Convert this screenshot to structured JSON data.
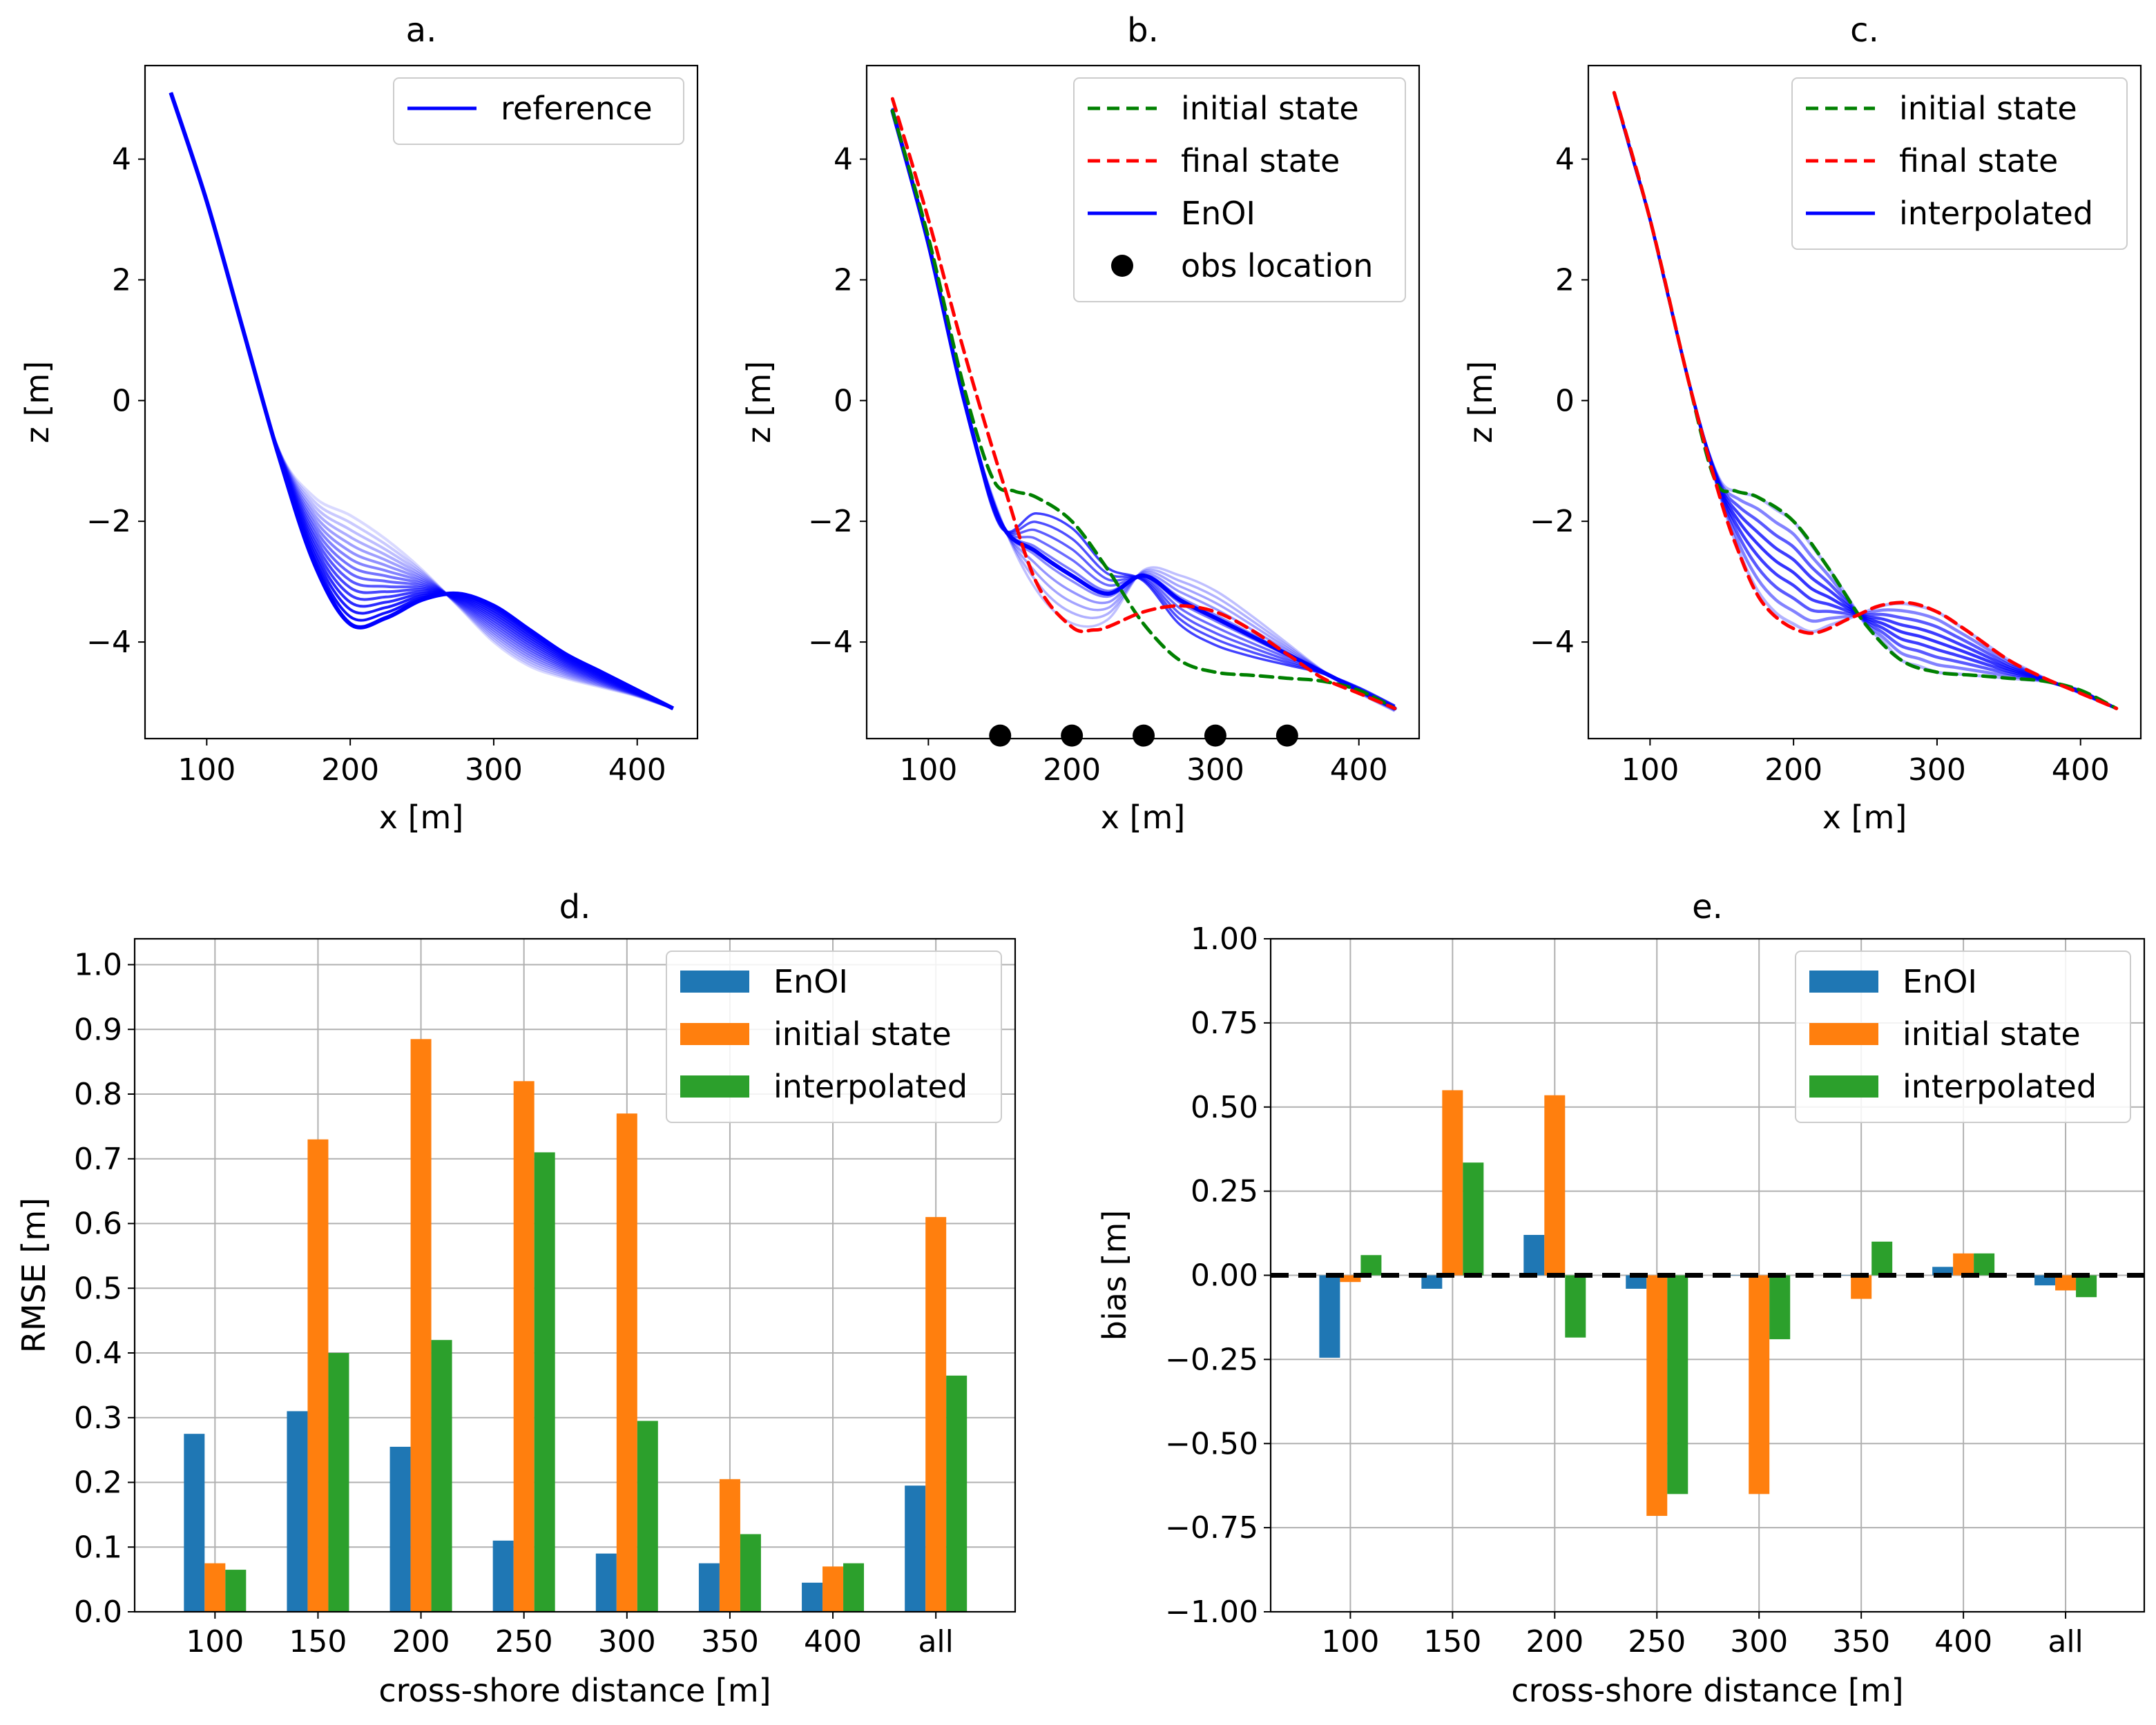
{
  "figure": {
    "panels": [
      {
        "title": "a.",
        "xlabel": "x [m]",
        "ylabel": "z [m]",
        "xticks": [
          100,
          200,
          300,
          400
        ],
        "yticks": [
          -4,
          -2,
          0,
          2,
          4
        ]
      },
      {
        "title": "b.",
        "xlabel": "x [m]",
        "ylabel": "z [m]",
        "xticks": [
          100,
          200,
          300,
          400
        ],
        "yticks": [
          -4,
          -2,
          0,
          2,
          4
        ]
      },
      {
        "title": "c.",
        "xlabel": "x [m]",
        "ylabel": "z [m]",
        "xticks": [
          100,
          200,
          300,
          400
        ],
        "yticks": [
          -4,
          -2,
          0,
          2,
          4
        ]
      }
    ]
  },
  "chart_data": [
    {
      "type": "line",
      "title": "a.",
      "xlabel": "x [m]",
      "ylabel": "z [m]",
      "xlim": [
        57,
        442
      ],
      "ylim": [
        -5.6,
        5.55
      ],
      "legend": {
        "entries": [
          "reference"
        ],
        "placement": "top-right"
      },
      "series": [
        {
          "name": "reference",
          "color": "#0000ff",
          "style": "solid",
          "ensemble_members": 16,
          "x": [
            75,
            100,
            125,
            150,
            175,
            200,
            225,
            250,
            275,
            300,
            325,
            350,
            375,
            400,
            425
          ],
          "y_last": [
            5.1,
            3.3,
            1.2,
            -0.9,
            -2.7,
            -3.7,
            -3.6,
            -3.3,
            -3.2,
            -3.4,
            -3.8,
            -4.2,
            -4.5,
            -4.8,
            -5.1
          ],
          "y_first": [
            5.1,
            3.3,
            1.2,
            -0.8,
            -1.6,
            -1.9,
            -2.3,
            -2.8,
            -3.4,
            -4.0,
            -4.4,
            -4.6,
            -4.75,
            -4.9,
            -5.1
          ]
        }
      ]
    },
    {
      "type": "line",
      "title": "b.",
      "xlabel": "x [m]",
      "ylabel": "z [m]",
      "xlim": [
        57,
        442
      ],
      "ylim": [
        -5.6,
        5.55
      ],
      "legend": {
        "entries": [
          "initial state",
          "final state",
          "EnOI",
          "obs location"
        ],
        "placement": "top-right"
      },
      "series": [
        {
          "name": "initial state",
          "color": "#008000",
          "style": "dashed",
          "x": [
            75,
            100,
            125,
            145,
            160,
            175,
            200,
            225,
            250,
            275,
            300,
            325,
            350,
            375,
            400,
            425
          ],
          "y": [
            4.8,
            2.7,
            0.2,
            -1.3,
            -1.5,
            -1.6,
            -2.0,
            -2.8,
            -3.7,
            -4.3,
            -4.5,
            -4.55,
            -4.6,
            -4.65,
            -4.8,
            -5.1
          ]
        },
        {
          "name": "final state",
          "color": "#ff0000",
          "style": "dashed",
          "x": [
            75,
            100,
            125,
            150,
            175,
            200,
            215,
            225,
            250,
            275,
            300,
            325,
            350,
            375,
            400,
            425
          ],
          "y": [
            5.0,
            3.0,
            0.8,
            -1.2,
            -3.0,
            -3.75,
            -3.8,
            -3.75,
            -3.5,
            -3.4,
            -3.5,
            -3.8,
            -4.2,
            -4.6,
            -4.85,
            -5.1
          ]
        },
        {
          "name": "EnOI",
          "color": "#0000ff",
          "style": "solid",
          "x": [
            75,
            100,
            125,
            150,
            175,
            200,
            225,
            250,
            275,
            300,
            325,
            350,
            375,
            400,
            425
          ],
          "y": [
            4.8,
            2.6,
            0.0,
            -2.0,
            -2.5,
            -2.9,
            -3.2,
            -2.9,
            -3.3,
            -3.6,
            -3.9,
            -4.2,
            -4.5,
            -4.8,
            -5.1
          ]
        },
        {
          "name": "obs location",
          "color": "#000000",
          "style": "marker",
          "x": [
            150,
            200,
            250,
            300,
            350
          ],
          "y": [
            -5.55,
            -5.55,
            -5.55,
            -5.55,
            -5.55
          ]
        }
      ]
    },
    {
      "type": "line",
      "title": "c.",
      "xlabel": "x [m]",
      "ylabel": "z [m]",
      "xlim": [
        57,
        442
      ],
      "ylim": [
        -5.6,
        5.55
      ],
      "legend": {
        "entries": [
          "initial state",
          "final state",
          "interpolated"
        ],
        "placement": "top-right"
      },
      "series": [
        {
          "name": "initial state",
          "color": "#008000",
          "style": "dashed",
          "x": [
            75,
            100,
            125,
            145,
            160,
            175,
            200,
            225,
            250,
            275,
            300,
            325,
            350,
            375,
            400,
            425
          ],
          "y": [
            5.1,
            3.0,
            0.5,
            -1.3,
            -1.5,
            -1.6,
            -2.0,
            -2.8,
            -3.7,
            -4.3,
            -4.5,
            -4.55,
            -4.6,
            -4.65,
            -4.8,
            -5.1
          ]
        },
        {
          "name": "final state",
          "color": "#ff0000",
          "style": "dashed",
          "x": [
            75,
            100,
            125,
            145,
            160,
            180,
            210,
            240,
            260,
            280,
            300,
            320,
            350,
            375,
            400,
            425
          ],
          "y": [
            5.1,
            3.0,
            0.5,
            -1.3,
            -2.4,
            -3.4,
            -3.85,
            -3.6,
            -3.4,
            -3.35,
            -3.5,
            -3.8,
            -4.3,
            -4.6,
            -4.85,
            -5.1
          ]
        },
        {
          "name": "interpolated",
          "color": "#0000ff",
          "style": "solid",
          "ensemble_members": 9
        }
      ]
    },
    {
      "type": "bar",
      "title": "d.",
      "xlabel": "cross-shore distance [m]",
      "ylabel": "RMSE [m]",
      "ylim": [
        0.0,
        1.04
      ],
      "yticks": [
        "0.0",
        "0.1",
        "0.2",
        "0.3",
        "0.4",
        "0.5",
        "0.6",
        "0.7",
        "0.8",
        "0.9",
        "1.0"
      ],
      "grid": true,
      "legend": {
        "entries": [
          "EnOI",
          "initial state",
          "interpolated"
        ],
        "placement": "top-right"
      },
      "categories": [
        "100",
        "150",
        "200",
        "250",
        "300",
        "350",
        "400",
        "all"
      ],
      "series": [
        {
          "name": "EnOI",
          "color": "#1f77b4",
          "values": [
            0.275,
            0.31,
            0.255,
            0.11,
            0.09,
            0.075,
            0.045,
            0.195
          ]
        },
        {
          "name": "initial state",
          "color": "#ff7f0e",
          "values": [
            0.075,
            0.73,
            0.885,
            0.82,
            0.77,
            0.205,
            0.07,
            0.61
          ]
        },
        {
          "name": "interpolated",
          "color": "#2ca02c",
          "values": [
            0.065,
            0.4,
            0.42,
            0.71,
            0.295,
            0.12,
            0.075,
            0.365
          ]
        }
      ]
    },
    {
      "type": "bar",
      "title": "e.",
      "xlabel": "cross-shore distance [m]",
      "ylabel": "bias [m]",
      "ylim": [
        -1.0,
        1.0
      ],
      "yticks": [
        "1.00",
        "0.75",
        "0.50",
        "0.25",
        "0.00",
        "−0.25",
        "−0.50",
        "−0.75",
        "−1.00"
      ],
      "grid": true,
      "reference_line": {
        "y": 0,
        "color": "#000000",
        "style": "dashed"
      },
      "legend": {
        "entries": [
          "EnOI",
          "initial state",
          "interpolated"
        ],
        "placement": "top-right"
      },
      "categories": [
        "100",
        "150",
        "200",
        "250",
        "300",
        "350",
        "400",
        "all"
      ],
      "series": [
        {
          "name": "EnOI",
          "color": "#1f77b4",
          "values": [
            -0.245,
            -0.04,
            0.12,
            -0.04,
            0.0,
            0.0,
            0.025,
            -0.03
          ]
        },
        {
          "name": "initial state",
          "color": "#ff7f0e",
          "values": [
            -0.02,
            0.55,
            0.535,
            -0.715,
            -0.65,
            -0.07,
            0.065,
            -0.045
          ]
        },
        {
          "name": "interpolated",
          "color": "#2ca02c",
          "values": [
            0.06,
            0.335,
            -0.185,
            -0.65,
            -0.19,
            0.1,
            0.065,
            -0.065
          ]
        }
      ]
    }
  ]
}
